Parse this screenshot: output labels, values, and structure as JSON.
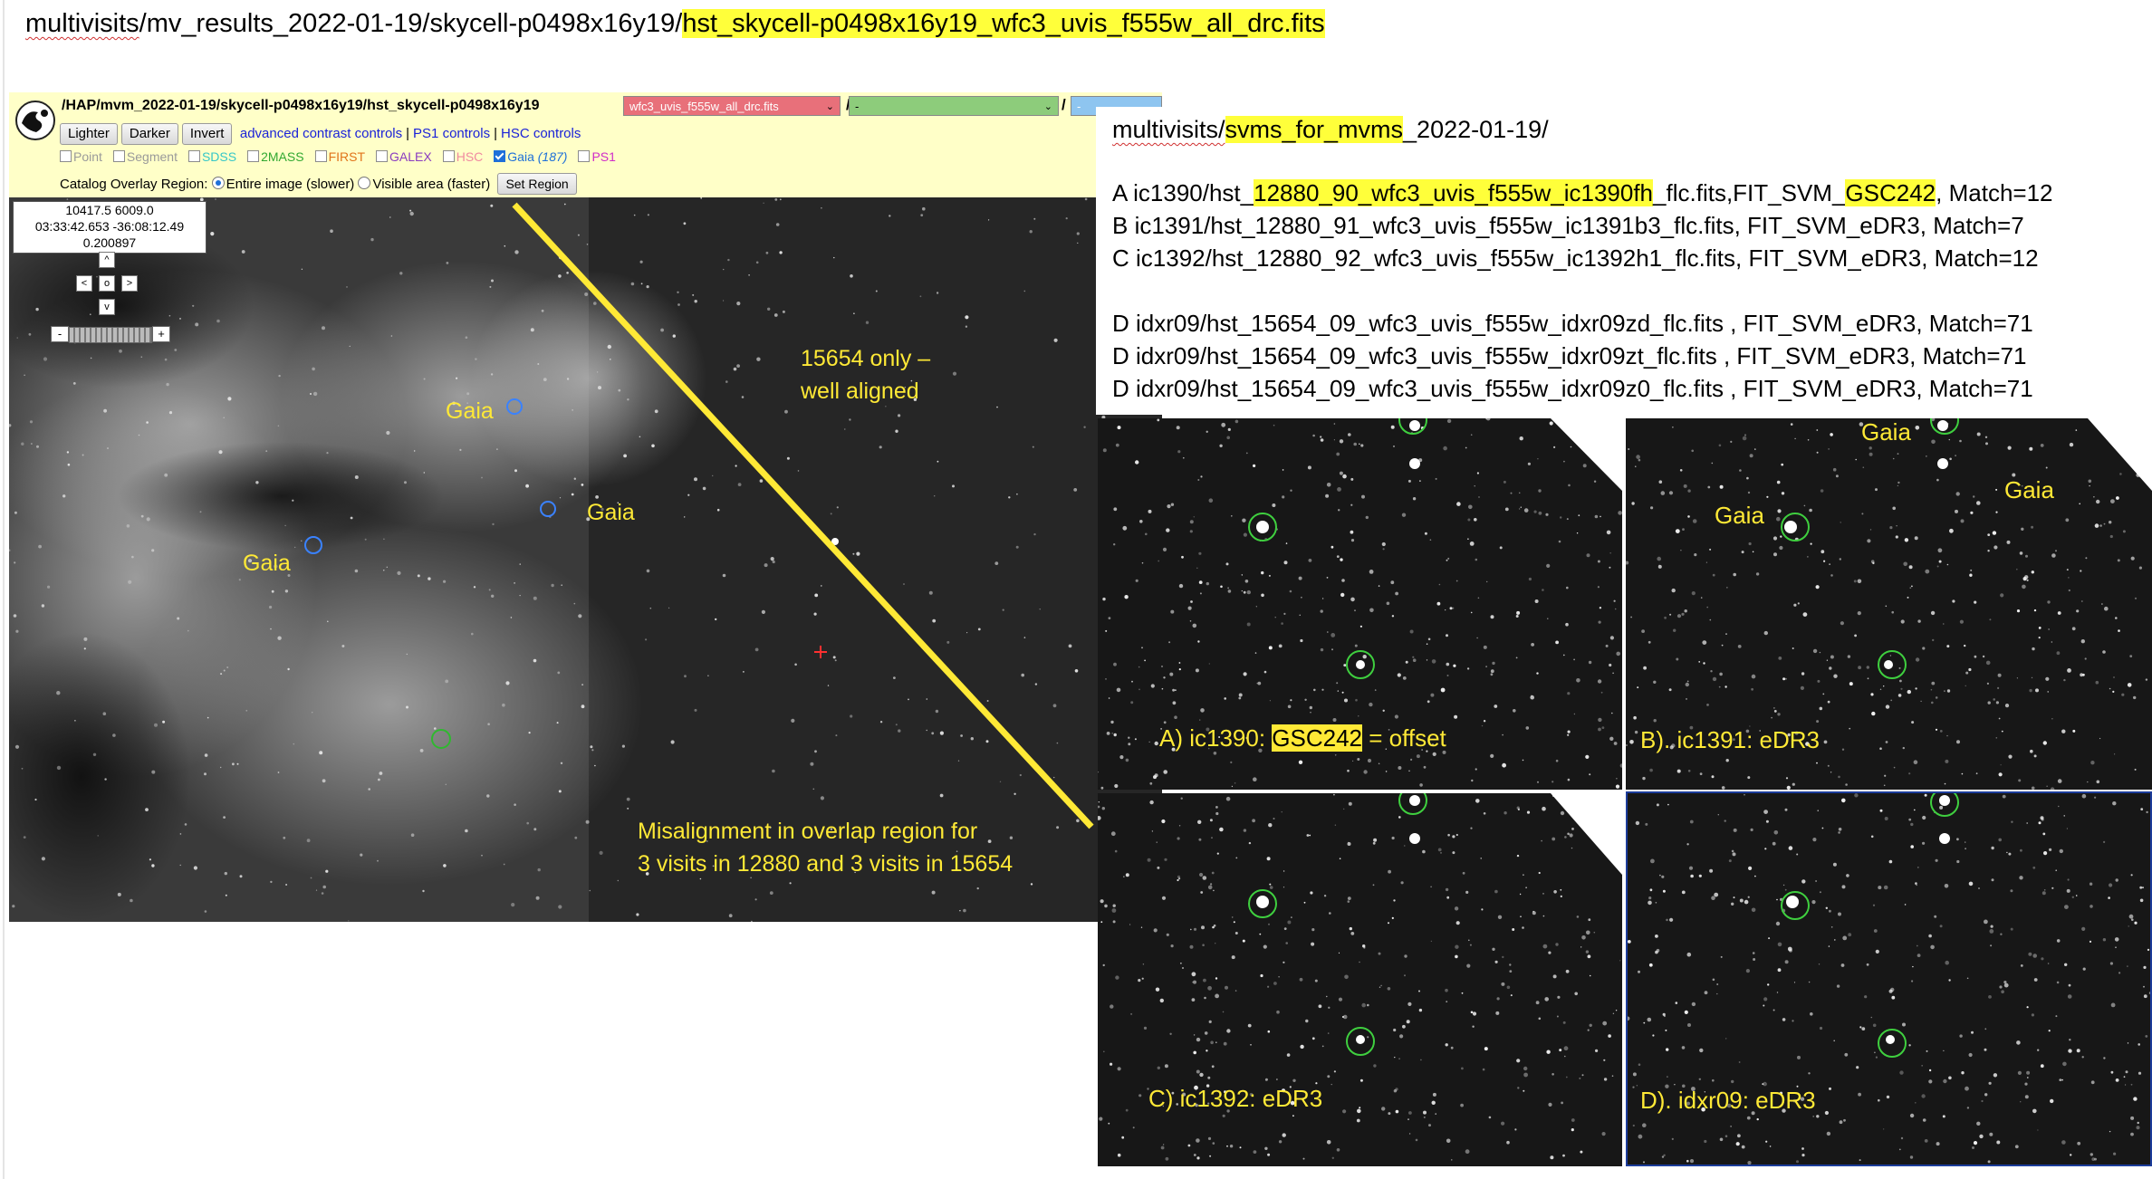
{
  "title": {
    "prefix": "multivisits",
    "middle": "/mv_results_2022-01-19/skycell-p0498x16y19/",
    "highlight": "hst_skycell-p0498x16y19_wfc3_uvis_f555w_all_drc.fits"
  },
  "viewer": {
    "path": "/HAP/mvm_2022-01-19/skycell-p0498x16y19/hst_skycell-p0498x16y19",
    "file_select": "wfc3_uvis_f555w_all_drc.fits",
    "second_select": "-",
    "third_select": "-",
    "separator": "/",
    "buttons": [
      "Lighter",
      "Darker",
      "Invert"
    ],
    "links": [
      "advanced contrast controls",
      "PS1 controls",
      "HSC controls"
    ],
    "catalogs": [
      {
        "label": "Point",
        "color": "#9a9a9a",
        "checked": false
      },
      {
        "label": "Segment",
        "color": "#9a9a9a",
        "checked": false
      },
      {
        "label": "SDSS",
        "color": "#36c7c7",
        "checked": false
      },
      {
        "label": "2MASS",
        "color": "#31a831",
        "checked": false
      },
      {
        "label": "FIRST",
        "color": "#e0741a",
        "checked": false
      },
      {
        "label": "GALEX",
        "color": "#8a3cc0",
        "checked": false
      },
      {
        "label": "HSC",
        "color": "#f08aa0",
        "checked": false
      },
      {
        "label": "Gaia",
        "color": "#1f70d8",
        "checked": true,
        "count": "(187)"
      },
      {
        "label": "PS1",
        "color": "#d02cc9",
        "checked": false
      }
    ],
    "region_label": "Catalog Overlay Region:",
    "region_options": [
      "Entire image (slower)",
      "Visible area (faster)"
    ],
    "set_region": "Set Region",
    "info": [
      "10417.5 6009.0",
      "03:33:42.653 -36:08:12.49",
      "0.200897"
    ],
    "nav": {
      "up": "^",
      "left": "<",
      "center": "o",
      "right": ">",
      "down": "v",
      "minus": "-",
      "plus": "+"
    },
    "labels": {
      "gaia": "Gaia",
      "well_aligned": [
        "15654 only –",
        "well aligned"
      ],
      "misalignment": [
        "Misalignment in overlap region for",
        "3 visits in 12880 and 3 visits in 15654"
      ]
    }
  },
  "svms": {
    "heading_prefix": "multivisits/",
    "heading_highlight": "svms_for_mvms",
    "heading_suffix": "_2022-01-19/",
    "lines": [
      {
        "pre": "A  ic1390/hst_",
        "hl1": "12880_90_wfc3_uvis_f555w_ic1390fh",
        "mid": "_flc.fits,FIT_SVM_",
        "hl2": "GSC242",
        "post": ", Match=12"
      },
      {
        "pre": "B  ic1391/hst_12880_91_wfc3_uvis_f555w_ic1391b3_flc.fits, FIT_SVM_eDR3,  Match=7"
      },
      {
        "pre": "C  ic1392/hst_12880_92_wfc3_uvis_f555w_ic1392h1_flc.fits, FIT_SVM_eDR3,  Match=12"
      },
      {
        "pre": "D idxr09/hst_15654_09_wfc3_uvis_f555w_idxr09zd_flc.fits , FIT_SVM_eDR3, Match=71"
      },
      {
        "pre": "D idxr09/hst_15654_09_wfc3_uvis_f555w_idxr09zt_flc.fits , FIT_SVM_eDR3, Match=71"
      },
      {
        "pre": "D idxr09/hst_15654_09_wfc3_uvis_f555w_idxr09z0_flc.fits , FIT_SVM_eDR3, Match=71"
      }
    ]
  },
  "tiles": {
    "a": {
      "pre": "A)  ic1390:  ",
      "hl": "GSC242",
      "post": " = offset"
    },
    "b": {
      "label": "B). ic1391:  eDR3",
      "gaia": "Gaia"
    },
    "c": {
      "label": "C)  ic1392:  eDR3"
    },
    "d": {
      "label": "D). idxr09:  eDR3"
    }
  }
}
